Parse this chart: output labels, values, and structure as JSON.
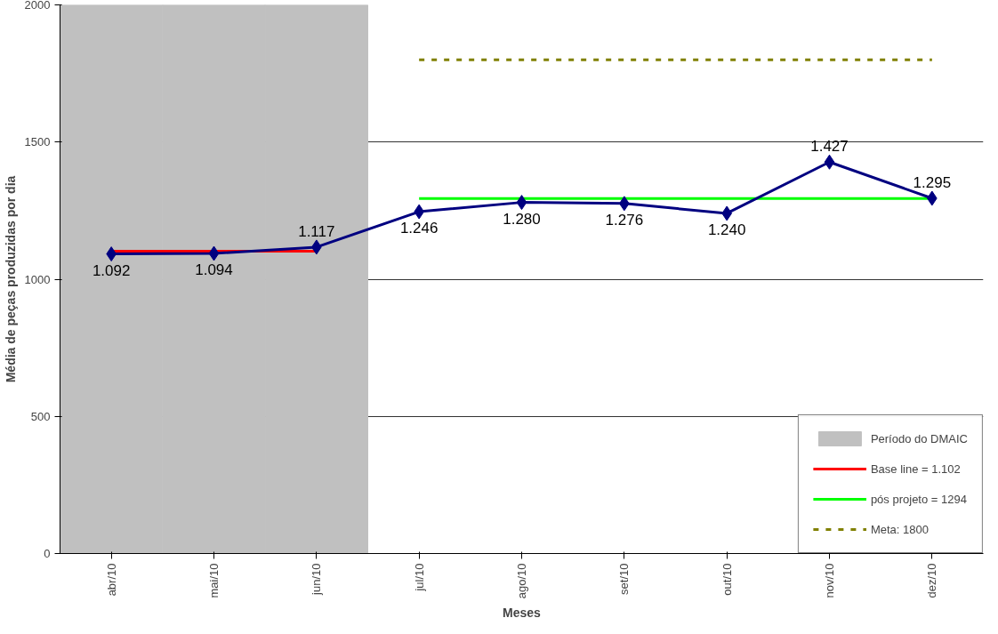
{
  "chart_data": {
    "type": "line",
    "xlabel": "Meses",
    "ylabel": "Média de peças produzidas por dia",
    "categories": [
      "abr/10",
      "mai/10",
      "jun/10",
      "jul/10",
      "ago/10",
      "set/10",
      "out/10",
      "nov/10",
      "dez/10"
    ],
    "series": [
      {
        "name": "Período do DMAIC",
        "type": "bar",
        "color": "#c0c0c0",
        "values": [
          2000,
          2000,
          2000,
          null,
          null,
          null,
          null,
          null,
          null
        ]
      },
      {
        "name": "Base line = 1.102",
        "type": "line",
        "color": "#ff0000",
        "line_style": "solid",
        "marker": "none",
        "values": [
          1102,
          1102,
          1102,
          null,
          null,
          null,
          null,
          null,
          null
        ]
      },
      {
        "name": "pós projeto = 1294",
        "type": "line",
        "color": "#00ff00",
        "line_style": "solid",
        "marker": "none",
        "values": [
          null,
          null,
          null,
          1294,
          1294,
          1294,
          1294,
          1294,
          1294
        ]
      },
      {
        "name": "Meta: 1800",
        "type": "line",
        "color": "#808000",
        "line_style": "dashed",
        "marker": "none",
        "values": [
          null,
          null,
          null,
          1800,
          1800,
          1800,
          1800,
          1800,
          1800
        ]
      },
      {
        "color": "#000080",
        "line_style": "solid",
        "marker": "diamond",
        "values": [
          1092,
          1094,
          1117,
          1246,
          1280,
          1276,
          1240,
          1427,
          1295
        ],
        "value_labels": [
          "1.092",
          "1.094",
          "1.117",
          "1.246",
          "1.280",
          "1.276",
          "1.240",
          "1.427",
          "1.295"
        ]
      }
    ],
    "ylim": [
      0,
      2000
    ],
    "yticks": [
      0,
      500,
      1000,
      1500,
      2000
    ],
    "grid": "y",
    "legend": "bottom right"
  }
}
